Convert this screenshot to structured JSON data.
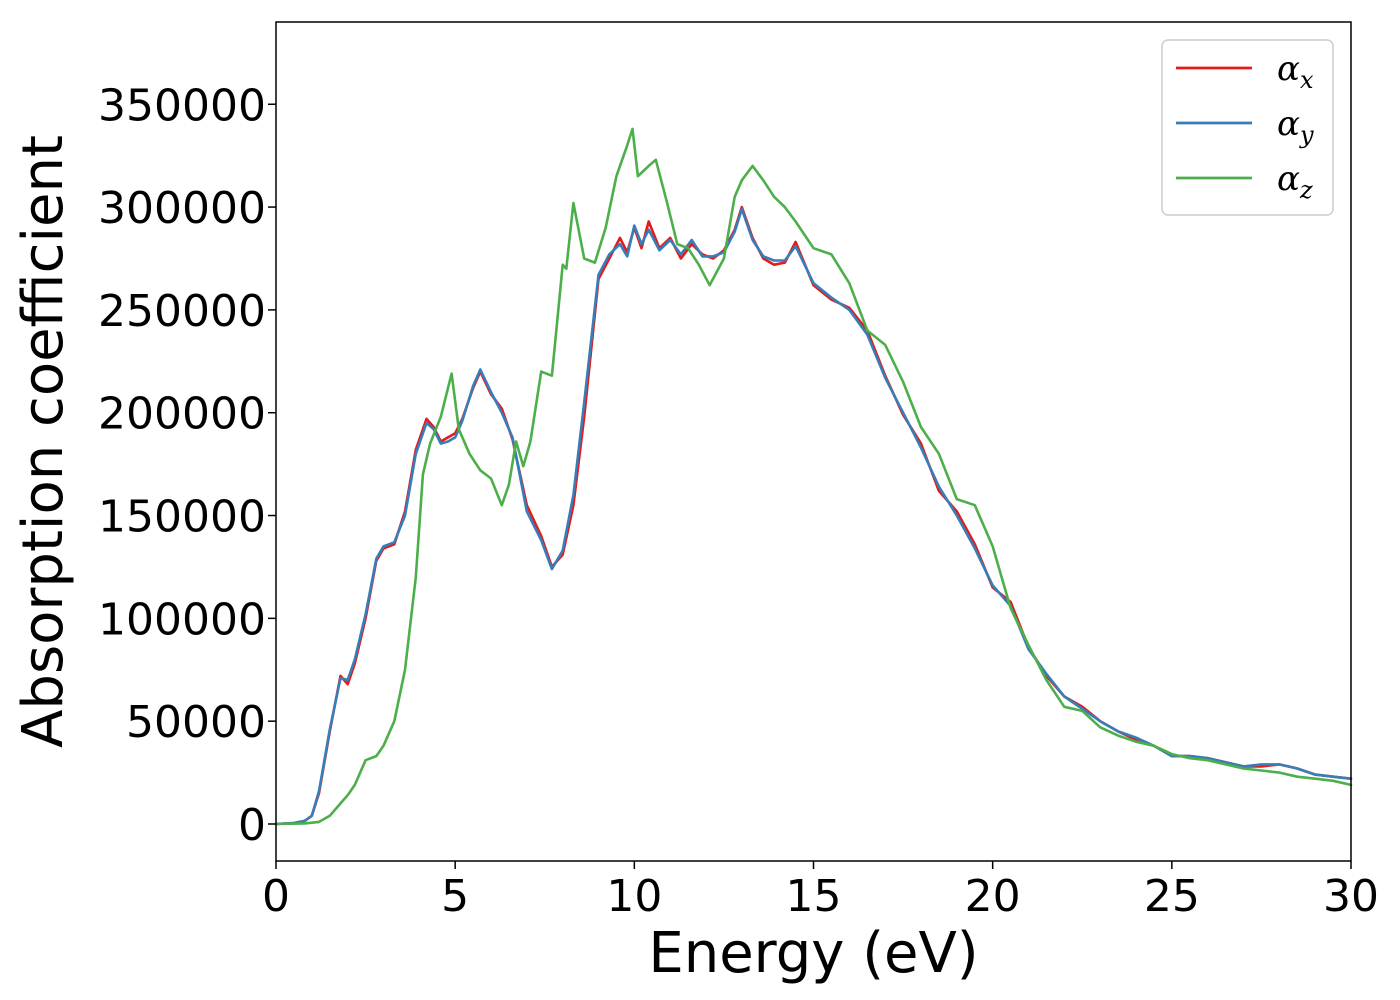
{
  "chart_data": {
    "type": "line",
    "title": "",
    "xlabel": "Energy (eV)",
    "ylabel": "Absorption coefficient",
    "xlim": [
      0,
      30
    ],
    "ylim": [
      -18000,
      390000
    ],
    "x_ticks": [
      0,
      5,
      10,
      15,
      20,
      25,
      30
    ],
    "y_ticks": [
      0,
      50000,
      100000,
      150000,
      200000,
      250000,
      300000,
      350000
    ],
    "grid": false,
    "legend_position": "top-right",
    "series": [
      {
        "name": "αx",
        "symbol": "α",
        "subscript": "x",
        "color": "#e41a1c",
        "x": [
          0,
          0.5,
          0.8,
          1.0,
          1.2,
          1.5,
          1.8,
          2.0,
          2.2,
          2.5,
          2.8,
          3.0,
          3.3,
          3.6,
          3.9,
          4.2,
          4.4,
          4.6,
          4.8,
          5.0,
          5.2,
          5.5,
          5.7,
          6.0,
          6.3,
          6.6,
          7.0,
          7.4,
          7.7,
          8.0,
          8.3,
          8.6,
          9.0,
          9.3,
          9.6,
          9.8,
          10.0,
          10.2,
          10.4,
          10.7,
          11.0,
          11.3,
          11.6,
          11.9,
          12.2,
          12.5,
          12.8,
          13.0,
          13.3,
          13.6,
          13.9,
          14.2,
          14.5,
          15.0,
          15.5,
          16.0,
          16.5,
          17.0,
          17.5,
          18.0,
          18.5,
          19.0,
          19.5,
          20.0,
          20.5,
          21.0,
          21.5,
          22.0,
          22.5,
          23.0,
          23.5,
          24.0,
          24.5,
          25.0,
          25.5,
          26.0,
          26.5,
          27.0,
          27.5,
          28.0,
          28.5,
          29.0,
          29.5,
          30.0
        ],
        "y": [
          0,
          500,
          1500,
          4000,
          15000,
          45000,
          72000,
          68000,
          78000,
          100000,
          128000,
          134000,
          136000,
          152000,
          182000,
          197000,
          193000,
          186000,
          188000,
          190000,
          197000,
          212000,
          220000,
          209000,
          202000,
          187000,
          155000,
          140000,
          125000,
          131000,
          155000,
          198000,
          265000,
          275000,
          285000,
          278000,
          290000,
          280000,
          293000,
          280000,
          285000,
          275000,
          282000,
          277000,
          275000,
          279000,
          289000,
          300000,
          285000,
          275000,
          272000,
          273000,
          283000,
          262000,
          255000,
          251000,
          240000,
          218000,
          199000,
          185000,
          162000,
          152000,
          136000,
          115000,
          108000,
          86000,
          72000,
          62000,
          57000,
          50000,
          45000,
          41000,
          38000,
          33000,
          33000,
          32000,
          30000,
          28000,
          28000,
          29000,
          27000,
          24000,
          23000,
          22000
        ]
      },
      {
        "name": "αy",
        "symbol": "α",
        "subscript": "y",
        "color": "#377eb8",
        "x": [
          0,
          0.5,
          0.8,
          1.0,
          1.2,
          1.5,
          1.8,
          2.0,
          2.2,
          2.5,
          2.8,
          3.0,
          3.3,
          3.6,
          3.9,
          4.2,
          4.4,
          4.6,
          4.8,
          5.0,
          5.2,
          5.5,
          5.7,
          6.0,
          6.3,
          6.6,
          7.0,
          7.4,
          7.7,
          8.0,
          8.3,
          8.6,
          9.0,
          9.3,
          9.6,
          9.8,
          10.0,
          10.2,
          10.4,
          10.7,
          11.0,
          11.3,
          11.6,
          11.9,
          12.2,
          12.5,
          12.8,
          13.0,
          13.3,
          13.6,
          13.9,
          14.2,
          14.5,
          15.0,
          15.5,
          16.0,
          16.5,
          17.0,
          17.5,
          18.0,
          18.5,
          19.0,
          19.5,
          20.0,
          20.5,
          21.0,
          21.5,
          22.0,
          22.5,
          23.0,
          23.5,
          24.0,
          24.5,
          25.0,
          25.5,
          26.0,
          26.5,
          27.0,
          27.5,
          28.0,
          28.5,
          29.0,
          29.5,
          30.0
        ],
        "y": [
          0,
          500,
          1500,
          4000,
          16000,
          46000,
          71000,
          70000,
          80000,
          102000,
          129000,
          135000,
          137000,
          150000,
          180000,
          195000,
          192000,
          185000,
          186000,
          188000,
          196000,
          213000,
          221000,
          210000,
          200000,
          188000,
          152000,
          138000,
          124000,
          133000,
          160000,
          205000,
          267000,
          277000,
          282000,
          276000,
          291000,
          282000,
          289000,
          279000,
          284000,
          277000,
          284000,
          276000,
          276000,
          278000,
          288000,
          299000,
          284000,
          276000,
          274000,
          274000,
          281000,
          263000,
          256000,
          250000,
          238000,
          217000,
          200000,
          183000,
          164000,
          150000,
          134000,
          116000,
          106000,
          85000,
          73000,
          62000,
          56000,
          50000,
          45000,
          42000,
          38000,
          33000,
          33000,
          32000,
          30000,
          28000,
          29000,
          29000,
          27000,
          24000,
          23000,
          22000
        ]
      },
      {
        "name": "αz",
        "symbol": "α",
        "subscript": "z",
        "color": "#4daf4a",
        "x": [
          0,
          0.8,
          1.2,
          1.5,
          1.8,
          2.0,
          2.2,
          2.5,
          2.8,
          3.0,
          3.3,
          3.6,
          3.9,
          4.1,
          4.3,
          4.6,
          4.9,
          5.1,
          5.4,
          5.7,
          6.0,
          6.3,
          6.5,
          6.7,
          6.9,
          7.1,
          7.4,
          7.7,
          8.0,
          8.1,
          8.3,
          8.6,
          8.9,
          9.2,
          9.5,
          9.8,
          9.95,
          10.1,
          10.4,
          10.6,
          10.9,
          11.2,
          11.5,
          11.8,
          12.1,
          12.5,
          12.8,
          13.0,
          13.3,
          13.6,
          13.9,
          14.2,
          14.5,
          15.0,
          15.5,
          16.0,
          16.5,
          17.0,
          17.5,
          18.0,
          18.5,
          19.0,
          19.5,
          20.0,
          20.5,
          21.0,
          21.5,
          22.0,
          22.5,
          23.0,
          23.5,
          24.0,
          24.5,
          25.0,
          25.5,
          26.0,
          26.5,
          27.0,
          27.5,
          28.0,
          28.5,
          29.0,
          29.5,
          30.0
        ],
        "y": [
          0,
          300,
          1000,
          4000,
          10000,
          14000,
          19000,
          31000,
          33000,
          38000,
          50000,
          75000,
          120000,
          170000,
          185000,
          198000,
          219000,
          192000,
          180000,
          172000,
          168000,
          155000,
          165000,
          186000,
          174000,
          186000,
          220000,
          218000,
          272000,
          270000,
          302000,
          275000,
          273000,
          290000,
          315000,
          330000,
          338000,
          315000,
          320000,
          323000,
          303000,
          282000,
          280000,
          272000,
          262000,
          275000,
          305000,
          313000,
          320000,
          313000,
          305000,
          300000,
          293000,
          280000,
          277000,
          263000,
          240000,
          233000,
          215000,
          193000,
          180000,
          158000,
          155000,
          135000,
          105000,
          87000,
          70000,
          57000,
          55000,
          47000,
          43000,
          40000,
          38000,
          34000,
          32000,
          31000,
          29000,
          27000,
          26000,
          25000,
          23000,
          22000,
          21000,
          19000
        ]
      }
    ]
  }
}
